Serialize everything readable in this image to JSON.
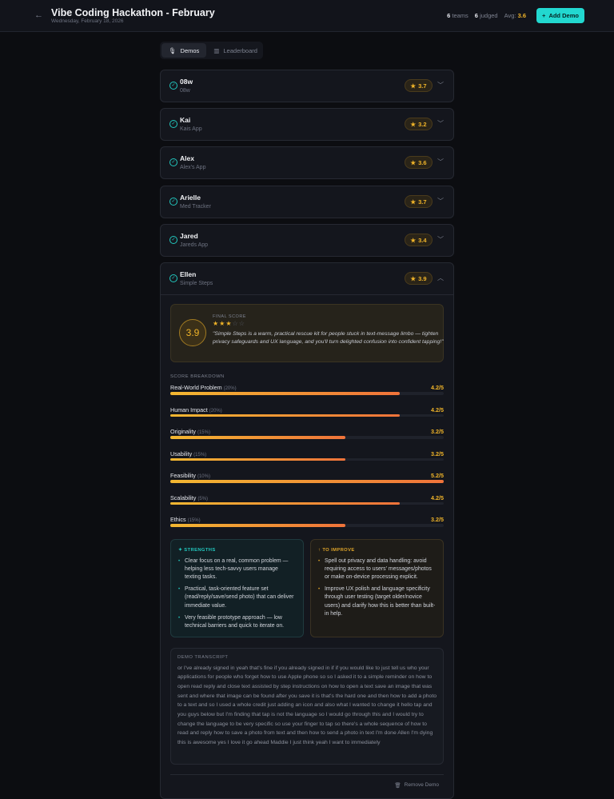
{
  "header": {
    "title": "Vibe Coding Hackathon - February",
    "date": "Wednesday, February 18, 2026",
    "teams_count": "6",
    "teams_label": "teams",
    "judged_count": "6",
    "judged_label": "judged",
    "avg_label": "Avg:",
    "avg_value": "3.6",
    "add_label": "Add Demo"
  },
  "tabs": [
    {
      "label": "Demos",
      "icon": "microphone-icon",
      "active": true
    },
    {
      "label": "Leaderboard",
      "icon": "bar-chart-icon",
      "active": false
    }
  ],
  "demos": [
    {
      "name": "08w",
      "app": "08w",
      "score": "3.7"
    },
    {
      "name": "Kai",
      "app": "Kais App",
      "score": "3.2"
    },
    {
      "name": "Alex",
      "app": "Alex's App",
      "score": "3.6"
    },
    {
      "name": "Arielle",
      "app": "Med Tracker",
      "score": "3.7"
    },
    {
      "name": "Jared",
      "app": "Jareds App",
      "score": "3.4"
    },
    {
      "name": "Ellen",
      "app": "Simple Steps",
      "score": "3.9"
    }
  ],
  "expanded": {
    "final_label": "FINAL SCORE",
    "final_score": "3.9",
    "stars_filled": 3,
    "stars_total": 5,
    "quote": "\"Simple Steps is a warm, practical rescue kit for people stuck in text-message limbo — tighten privacy safeguards and UX language, and you'll turn delighted confusion into confident tapping!\"",
    "breakdown_label": "SCORE BREAKDOWN",
    "criteria": [
      {
        "name": "Real-World Problem",
        "weight": "(20%)",
        "score": "4.2/5",
        "value": 4.2
      },
      {
        "name": "Human Impact",
        "weight": "(20%)",
        "score": "4.2/5",
        "value": 4.2
      },
      {
        "name": "Originality",
        "weight": "(15%)",
        "score": "3.2/5",
        "value": 3.2
      },
      {
        "name": "Usability",
        "weight": "(15%)",
        "score": "3.2/5",
        "value": 3.2
      },
      {
        "name": "Feasibility",
        "weight": "(10%)",
        "score": "5.2/5",
        "value": 5.2
      },
      {
        "name": "Scalability",
        "weight": "(5%)",
        "score": "4.2/5",
        "value": 4.2
      },
      {
        "name": "Ethics",
        "weight": "(15%)",
        "score": "3.2/5",
        "value": 3.2
      }
    ],
    "strengths_label": "STRENGTHS",
    "strengths": [
      "Clear focus on a real, common problem — helping less tech-savvy users manage texting tasks.",
      "Practical, task-oriented feature set (read/reply/save/send photo) that can deliver immediate value.",
      "Very feasible prototype approach — low technical barriers and quick to iterate on."
    ],
    "improve_label": "TO IMPROVE",
    "improve": [
      "Spell out privacy and data handling: avoid requiring access to users' messages/photos or make on-device processing explicit.",
      "Improve UX polish and language specificity through user testing (target older/novice users) and clarify how this is better than built-in help."
    ],
    "transcript_label": "DEMO TRANSCRIPT",
    "transcript": "or I've already signed in yeah that's fine if you already signed in if if you would like to just tell us who your applications for people who forget how to use Apple phone so so I asked it to a simple reminder on how to open read reply and close text assisted by step instructions on how to open a text save an image that was sent and where that image can be found after you save it is that's the hard one and then how to add a photo to a text and so I used a whole credit just adding an icon and also what I wanted to change it hello tap and you guys below but I'm finding that tap is not the language so I would go through this and I would try to change the language to be very specific so use your finger to tap so there's a whole sequence of how to read and reply how to save a photo from text and then how to send a photo in text I'm done Allen I'm dying this is awesome yes I love it go ahead Maddie I just think yeah I want to immediately",
    "remove_label": "Remove Demo"
  },
  "colors": {
    "accent": "#22d8d0",
    "score": "#f0b429",
    "background": "#0c0d11"
  }
}
